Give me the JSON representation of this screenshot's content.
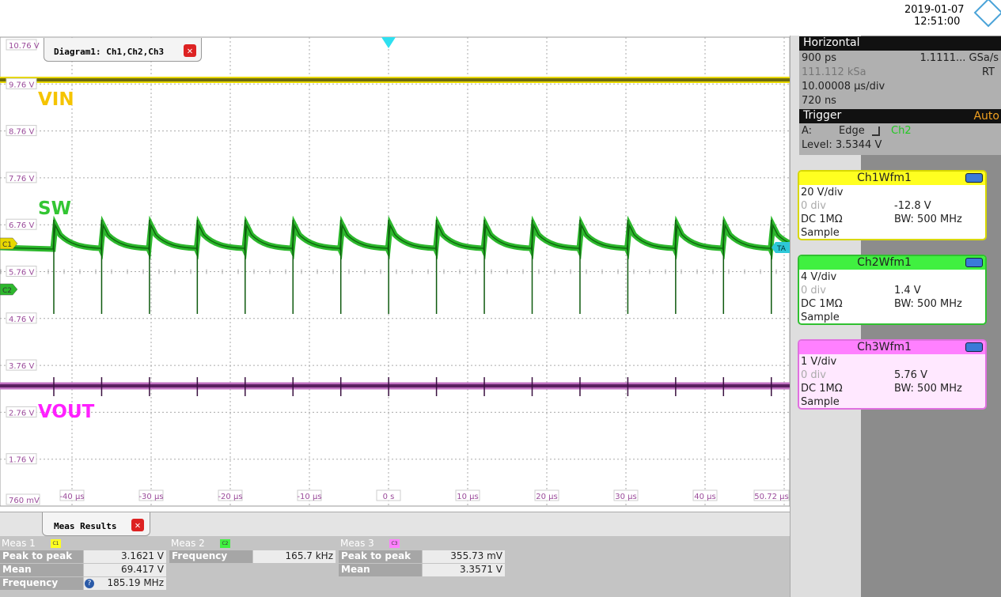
{
  "header": {
    "date": "2019-01-07",
    "time": "12:51:00"
  },
  "diagram": {
    "tab": "Diagram1: Ch1,Ch2,Ch3",
    "y_labels": [
      "10.76 V",
      "9.76 V",
      "8.76 V",
      "7.76 V",
      "6.76 V",
      "5.76 V",
      "4.76 V",
      "3.76 V",
      "2.76 V",
      "1.76 V",
      "760 mV"
    ],
    "x_labels": [
      "-40 µs",
      "-30 µs",
      "-20 µs",
      "-10 µs",
      "0 s",
      "10 µs",
      "20 µs",
      "30 µs",
      "40 µs",
      "50.72 µs"
    ],
    "traces": [
      "VIN",
      "SW",
      "VOUT"
    ],
    "channel_markers": [
      "C1",
      "C2"
    ],
    "trigger_marker": "TA"
  },
  "horizontal": {
    "title": "Horizontal",
    "resolution": "900 ps",
    "sample_rate": "1.1111... GSa/s",
    "record_length": "111.112 kSa",
    "mode": "RT",
    "scale": "10.00008 µs/div",
    "position": "720 ns"
  },
  "trigger": {
    "title": "Trigger",
    "mode": "Auto",
    "source_label": "A:",
    "type": "Edge",
    "source": "Ch2",
    "level": "Level: 3.5344 V"
  },
  "channels": [
    {
      "name": "Ch1Wfm1",
      "scale": "20 V/div",
      "offset_div": "0 div",
      "offset": "-12.8 V",
      "coupling": "DC 1MΩ",
      "bandwidth": "BW: 500 MHz",
      "acquisition": "Sample"
    },
    {
      "name": "Ch2Wfm1",
      "scale": "4 V/div",
      "offset_div": "0 div",
      "offset": "1.4 V",
      "coupling": "DC 1MΩ",
      "bandwidth": "BW: 500 MHz",
      "acquisition": "Sample"
    },
    {
      "name": "Ch3Wfm1",
      "scale": "1 V/div",
      "offset_div": "0 div",
      "offset": "5.76 V",
      "coupling": "DC 1MΩ",
      "bandwidth": "BW: 500 MHz",
      "acquisition": "Sample"
    }
  ],
  "measurements": {
    "tab": "Meas Results",
    "groups": [
      {
        "title": "Meas 1",
        "badge": "C1",
        "rows": [
          [
            "Peak to peak",
            "3.1621 V"
          ],
          [
            "Mean",
            "69.417 V"
          ],
          [
            "Frequency",
            "185.19 MHz"
          ]
        ]
      },
      {
        "title": "Meas 2",
        "badge": "C2",
        "rows": [
          [
            "Frequency",
            "165.7 kHz"
          ]
        ]
      },
      {
        "title": "Meas 3",
        "badge": "C3",
        "rows": [
          [
            "Peak to peak",
            "355.73 mV"
          ],
          [
            "Mean",
            "3.3571 V"
          ]
        ]
      }
    ]
  }
}
